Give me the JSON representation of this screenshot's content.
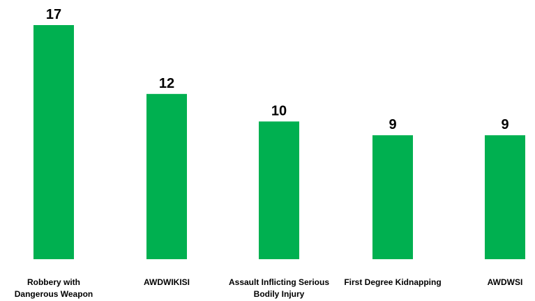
{
  "chart_data": {
    "type": "bar",
    "categories": [
      [
        "Robbery with",
        "Dangerous Weapon"
      ],
      [
        "AWDWIKISI"
      ],
      [
        "Assault Inflicting Serious",
        "Bodily Injury"
      ],
      [
        "First Degree Kidnapping"
      ],
      [
        "AWDWSI"
      ]
    ],
    "values": [
      17,
      12,
      10,
      9,
      9
    ],
    "data_labels": [
      "17",
      "12",
      "10",
      "9",
      "9"
    ],
    "ylim": [
      0,
      17
    ],
    "bar_color": "#00b050",
    "grid": false,
    "legend": "none"
  }
}
